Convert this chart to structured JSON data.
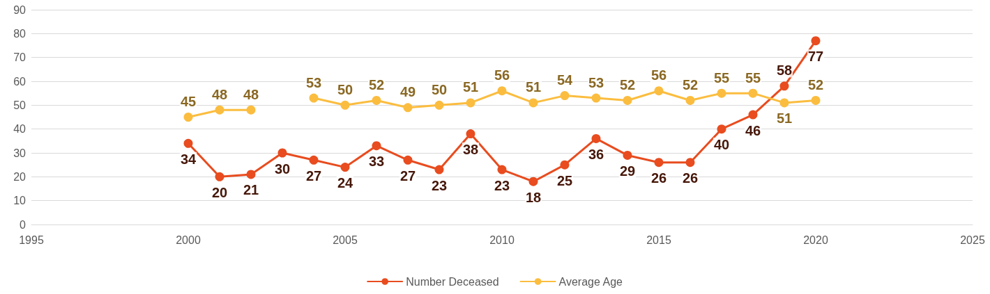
{
  "chart_data": {
    "type": "line",
    "x": [
      2000,
      2001,
      2002,
      2003,
      2004,
      2005,
      2006,
      2007,
      2008,
      2009,
      2010,
      2011,
      2012,
      2013,
      2014,
      2015,
      2016,
      2017,
      2018,
      2019,
      2020
    ],
    "series": [
      {
        "name": "Number Deceased",
        "color": "#e84c1f",
        "values": [
          34,
          20,
          21,
          30,
          27,
          24,
          33,
          27,
          23,
          38,
          23,
          18,
          25,
          36,
          29,
          26,
          26,
          40,
          46,
          58,
          77
        ]
      },
      {
        "name": "Average Age",
        "color": "#fbbd3f",
        "values": [
          45,
          48,
          48,
          null,
          53,
          50,
          52,
          49,
          50,
          51,
          56,
          51,
          54,
          53,
          52,
          56,
          52,
          55,
          55,
          51,
          52
        ]
      }
    ],
    "xlim": [
      1995,
      2025
    ],
    "xticks": [
      1995,
      2000,
      2005,
      2010,
      2015,
      2020,
      2025
    ],
    "ylim": [
      0,
      90
    ],
    "yticks": [
      0,
      10,
      20,
      30,
      40,
      50,
      60,
      70,
      80,
      90
    ],
    "grid": "y",
    "legend": "bottom",
    "marker": "circle",
    "line_style": "solid",
    "data_labels": true
  }
}
